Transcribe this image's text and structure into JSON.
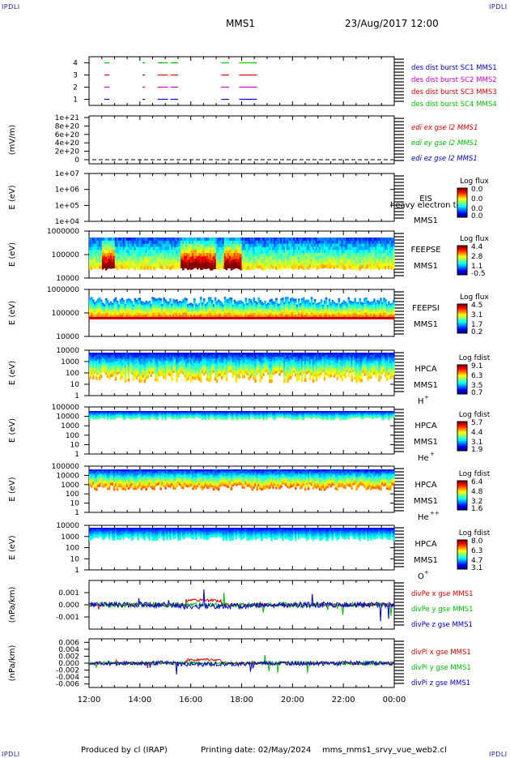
{
  "header": {
    "corner_label": "IPDLI",
    "mission": "MMS1",
    "datetime": "23/Aug/2017 12:00"
  },
  "footer": {
    "produced_by": "Produced by cl (IRAP)",
    "printing_date": "Printing date: 02/May/2024",
    "filename": "mms_mms1_srvy_vue_web2.cl"
  },
  "x_axis": {
    "ticks": [
      "12:00",
      "14:00",
      "16:00",
      "18:00",
      "20:00",
      "22:00",
      "00:00"
    ],
    "range_hours": [
      12,
      24
    ]
  },
  "colors": {
    "sc1": "#0000cc",
    "sc2": "#cc00cc",
    "sc3": "#dd0000",
    "sc4": "#00bb00",
    "x": "#dd0000",
    "y": "#00bb00",
    "z": "#0000cc"
  },
  "panels": {
    "burst": {
      "yticks": [
        "1",
        "2",
        "3",
        "4"
      ],
      "legend": [
        "des dist burst SC1 MMS1",
        "des dist burst SC2 MMS2",
        "des dist burst SC3 MMS3",
        "des dist burst SC4 MMS4"
      ]
    },
    "edi": {
      "ylabel": "(mV/m)",
      "yticks": [
        "0",
        "2e+20",
        "4e+20",
        "6e+20",
        "8e+20",
        "1e+21"
      ],
      "legend": [
        "edi ex gse l2 MMS1",
        "edi ey gse l2 MMS1",
        "edi ez gse l2 MMS1"
      ]
    },
    "eis": {
      "ylabel": "E (eV)",
      "yticks": [
        "1e+04",
        "1e+05",
        "1e+06",
        "1e+07"
      ],
      "label1": "EIS",
      "label2": "MMS1",
      "overlay": "heavy electron to",
      "cbar_title": "Log flux",
      "cbar_ticks": [
        "0.0",
        "0.0",
        "0.0",
        "0.0"
      ]
    },
    "feeps_e": {
      "ylabel": "E (eV)",
      "yticks": [
        "10000",
        "100000",
        "1000000"
      ],
      "label1": "FEEPSE",
      "label2": "MMS1",
      "cbar_title": "Log flux",
      "cbar_ticks": [
        "4.4",
        "2.8",
        "1.1",
        "-0.5"
      ]
    },
    "feeps_i": {
      "ylabel": "E (eV)",
      "yticks": [
        "10000",
        "100000",
        "1000000"
      ],
      "label1": "FEEPSI",
      "label2": "MMS1",
      "cbar_title": "Log flux",
      "cbar_ticks": [
        "4.5",
        "3.1",
        "1.7",
        "0.2"
      ]
    },
    "hpca_h": {
      "ylabel": "E (eV)",
      "yticks": [
        "1",
        "10",
        "100",
        "1000",
        "10000"
      ],
      "label1": "HPCA",
      "label2": "MMS1",
      "species": "H",
      "charge": "+",
      "cbar_title": "Log fdist",
      "cbar_ticks": [
        "9.1",
        "6.3",
        "3.5",
        "0.7"
      ]
    },
    "hpca_he": {
      "ylabel": "E (eV)",
      "yticks": [
        "1",
        "10",
        "100",
        "1000",
        "10000",
        "100000"
      ],
      "label1": "HPCA",
      "label2": "MMS1",
      "species": "He",
      "charge": "+",
      "cbar_title": "Log fdist",
      "cbar_ticks": [
        "5.7",
        "4.4",
        "3.1",
        "1.9"
      ]
    },
    "hpca_hepp": {
      "ylabel": "E (eV)",
      "yticks": [
        "1",
        "10",
        "100",
        "1000",
        "10000",
        "100000"
      ],
      "label1": "HPCA",
      "label2": "MMS1",
      "species": "He",
      "charge": "++",
      "cbar_title": "Log fdist",
      "cbar_ticks": [
        "6.4",
        "4.8",
        "3.2",
        "1.6"
      ]
    },
    "hpca_o": {
      "ylabel": "E (eV)",
      "yticks": [
        "1",
        "10",
        "100",
        "1000",
        "10000"
      ],
      "label1": "HPCA",
      "label2": "MMS1",
      "species": "O",
      "charge": "+",
      "cbar_title": "Log fdist",
      "cbar_ticks": [
        "8.0",
        "6.3",
        "4.7",
        "3.1"
      ]
    },
    "divpe": {
      "ylabel": "(nPa/km)",
      "yticks": [
        "-0.001",
        "0.000",
        "0.001"
      ],
      "legend": [
        "divPe x gse MMS1",
        "divPe y gse MMS1",
        "divPe z gse MMS1"
      ]
    },
    "divpi": {
      "ylabel": "(nPa/km)",
      "yticks": [
        "-0.006",
        "-0.004",
        "-0.002",
        "0.000",
        "0.002",
        "0.004",
        "0.006"
      ],
      "legend": [
        "divPi x gse MMS1",
        "divPi y gse MMS1",
        "divPi z gse MMS1"
      ]
    }
  },
  "chart_data": [
    {
      "type": "scatter",
      "name": "burst",
      "series": [
        {
          "name": "des dist burst SC1 MMS1",
          "y": 1,
          "intervals": [
            [
              12.6,
              12.8
            ],
            [
              14.1,
              14.2
            ],
            [
              14.7,
              15.1
            ],
            [
              15.2,
              15.5
            ],
            [
              17.2,
              17.5
            ],
            [
              17.9,
              18.6
            ]
          ]
        },
        {
          "name": "des dist burst SC2 MMS2",
          "y": 2,
          "intervals": [
            [
              12.6,
              12.8
            ],
            [
              14.1,
              14.2
            ],
            [
              14.7,
              15.1
            ],
            [
              15.2,
              15.5
            ],
            [
              17.2,
              17.5
            ],
            [
              17.9,
              18.6
            ]
          ]
        },
        {
          "name": "des dist burst SC3 MMS3",
          "y": 3,
          "intervals": [
            [
              12.6,
              12.8
            ],
            [
              14.1,
              14.2
            ],
            [
              14.7,
              15.1
            ],
            [
              15.2,
              15.5
            ],
            [
              17.2,
              17.5
            ],
            [
              17.9,
              18.6
            ]
          ]
        },
        {
          "name": "des dist burst SC4 MMS4",
          "y": 4,
          "intervals": [
            [
              12.6,
              12.8
            ],
            [
              14.1,
              14.2
            ],
            [
              14.7,
              15.1
            ],
            [
              15.2,
              15.5
            ],
            [
              17.2,
              17.5
            ],
            [
              17.9,
              18.6
            ]
          ]
        }
      ],
      "ylim": [
        0.5,
        4.5
      ]
    },
    {
      "type": "line",
      "name": "edi",
      "ylim": [
        0,
        1e+21
      ],
      "series": [
        {
          "name": "edi ez gse l2 MMS1",
          "x": [
            12,
            24
          ],
          "y": [
            0,
            0
          ]
        }
      ]
    },
    {
      "type": "heatmap",
      "name": "eis",
      "ylim": [
        10000.0,
        10000000.0
      ],
      "log": true,
      "fill": "empty"
    },
    {
      "type": "heatmap",
      "name": "feeps_e",
      "ylim": [
        10000.0,
        1000000.0
      ],
      "log": true,
      "enhanced_intervals": [
        [
          15.6,
          17.0
        ],
        [
          17.3,
          18.0
        ],
        [
          12.5,
          13.0
        ]
      ],
      "top_edge": 800000.0,
      "bottom_edge": 20000.0
    },
    {
      "type": "heatmap",
      "name": "feeps_i",
      "ylim": [
        10000.0,
        1000000.0
      ],
      "log": true,
      "band_energy": 60000.0,
      "top_edge_range": [
        200000.0,
        400000.0
      ]
    },
    {
      "type": "heatmap",
      "name": "hpca_h",
      "ylim": [
        1,
        30000.0
      ],
      "log": true,
      "peak_range": [
        1000,
        20000
      ],
      "low_edge_range": [
        5,
        30
      ]
    },
    {
      "type": "heatmap",
      "name": "hpca_he",
      "ylim": [
        1,
        100000.0
      ],
      "log": true,
      "band_range": [
        5000,
        30000
      ]
    },
    {
      "type": "heatmap",
      "name": "hpca_hepp",
      "ylim": [
        1,
        100000.0
      ],
      "log": true,
      "band_range": [
        1000,
        40000
      ]
    },
    {
      "type": "heatmap",
      "name": "hpca_o",
      "ylim": [
        1,
        100000.0
      ],
      "log": true,
      "band_range": [
        3000,
        30000
      ]
    },
    {
      "type": "line",
      "name": "divpe",
      "ylim": [
        -0.002,
        0.002
      ],
      "x_range": [
        12,
        24
      ]
    },
    {
      "type": "line",
      "name": "divpi",
      "ylim": [
        -0.007,
        0.007
      ],
      "x_range": [
        12,
        24
      ]
    }
  ]
}
